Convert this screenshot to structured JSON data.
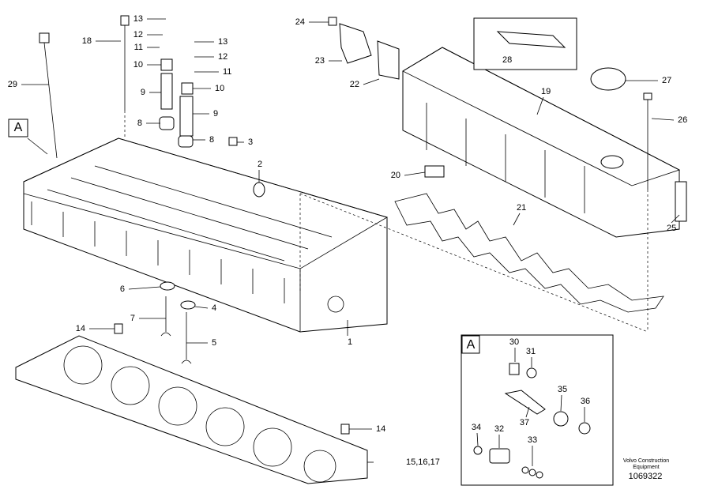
{
  "section_marker": "A",
  "callouts": [
    "13",
    "12",
    "11",
    "10",
    "9",
    "8",
    "18",
    "29",
    "13",
    "12",
    "11",
    "10",
    "9",
    "8",
    "3",
    "2",
    "24",
    "23",
    "22",
    "19",
    "27",
    "26",
    "20",
    "21",
    "25",
    "6",
    "7",
    "4",
    "5",
    "1",
    "14",
    "14",
    "15,16,17",
    "28"
  ],
  "inset": {
    "marker": "A",
    "callouts": [
      "30",
      "31",
      "35",
      "36",
      "37",
      "34",
      "32",
      "33"
    ]
  },
  "footer": {
    "company": [
      "Volvo Construction",
      "Equipment"
    ],
    "drawing_number": "1069322"
  }
}
